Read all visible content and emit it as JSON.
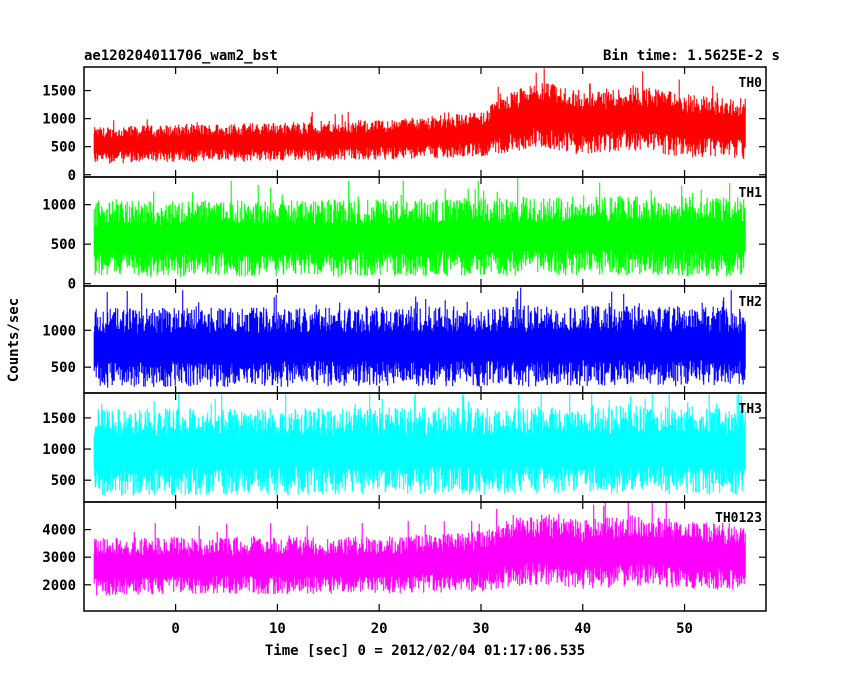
{
  "chart_data": {
    "type": "line",
    "title": "ae120204011706_wam2_bst",
    "bin_time_label": "Bin time: 1.5625E-2 s",
    "xlabel": "Time [sec] 0 = 2012/02/04 01:17:06.535",
    "ylabel": "Counts/sec",
    "xlim": [
      -9,
      58
    ],
    "data_x_range": [
      -8,
      56
    ],
    "x_ticks": [
      0,
      10,
      20,
      30,
      40,
      50
    ],
    "x_tick_labels": [
      "0",
      "10",
      "20",
      "30",
      "40",
      "50"
    ],
    "grid": false,
    "panels": [
      {
        "name": "TH0",
        "color": "#ff0000",
        "ylim": [
          -40,
          1920
        ],
        "y_ticks": [
          0,
          500,
          1000,
          1500
        ],
        "y_tick_labels": [
          "0",
          "500",
          "1000",
          "1500"
        ],
        "profile": {
          "x": [
            -8,
            0,
            10,
            20,
            30,
            33,
            36,
            40,
            45,
            50,
            56
          ],
          "median": [
            520,
            560,
            590,
            620,
            720,
            950,
            1080,
            900,
            1030,
            880,
            820
          ],
          "spread": [
            330,
            340,
            350,
            360,
            400,
            550,
            600,
            560,
            600,
            560,
            540
          ]
        }
      },
      {
        "name": "TH1",
        "color": "#00ff00",
        "ylim": [
          -30,
          1350
        ],
        "y_ticks": [
          0,
          500,
          1000
        ],
        "y_tick_labels": [
          "0",
          "500",
          "1000"
        ],
        "profile": {
          "x": [
            -8,
            0,
            10,
            20,
            30,
            40,
            50,
            56
          ],
          "median": [
            560,
            570,
            570,
            580,
            590,
            610,
            600,
            590
          ],
          "spread": [
            480,
            490,
            490,
            490,
            500,
            510,
            510,
            500
          ]
        }
      },
      {
        "name": "TH2",
        "color": "#0000ff",
        "ylim": [
          150,
          1600
        ],
        "y_ticks": [
          500,
          1000
        ],
        "y_tick_labels": [
          "500",
          "1000"
        ],
        "profile": {
          "x": [
            -8,
            0,
            10,
            20,
            30,
            40,
            50,
            56
          ],
          "median": [
            760,
            770,
            770,
            780,
            780,
            790,
            790,
            780
          ],
          "spread": [
            540,
            540,
            540,
            540,
            550,
            550,
            550,
            540
          ]
        }
      },
      {
        "name": "TH3",
        "color": "#00ffff",
        "ylim": [
          150,
          1900
        ],
        "y_ticks": [
          500,
          1000,
          1500
        ],
        "y_tick_labels": [
          "500",
          "1000",
          "1500"
        ],
        "profile": {
          "x": [
            -8,
            0,
            10,
            20,
            30,
            40,
            50,
            56
          ],
          "median": [
            950,
            960,
            960,
            970,
            970,
            990,
            980,
            970
          ],
          "spread": [
            700,
            700,
            700,
            700,
            700,
            710,
            710,
            700
          ]
        }
      },
      {
        "name": "TH0123",
        "color": "#ff00ff",
        "ylim": [
          1050,
          5000
        ],
        "y_ticks": [
          2000,
          3000,
          4000
        ],
        "y_tick_labels": [
          "2000",
          "3000",
          "4000"
        ],
        "profile": {
          "x": [
            -8,
            0,
            10,
            20,
            30,
            33,
            36,
            40,
            45,
            50,
            56
          ],
          "median": [
            2650,
            2700,
            2700,
            2720,
            2850,
            3150,
            3300,
            3100,
            3250,
            3100,
            3000
          ],
          "spread": [
            1050,
            1050,
            1050,
            1050,
            1100,
            1250,
            1300,
            1250,
            1300,
            1250,
            1200
          ]
        }
      }
    ]
  }
}
